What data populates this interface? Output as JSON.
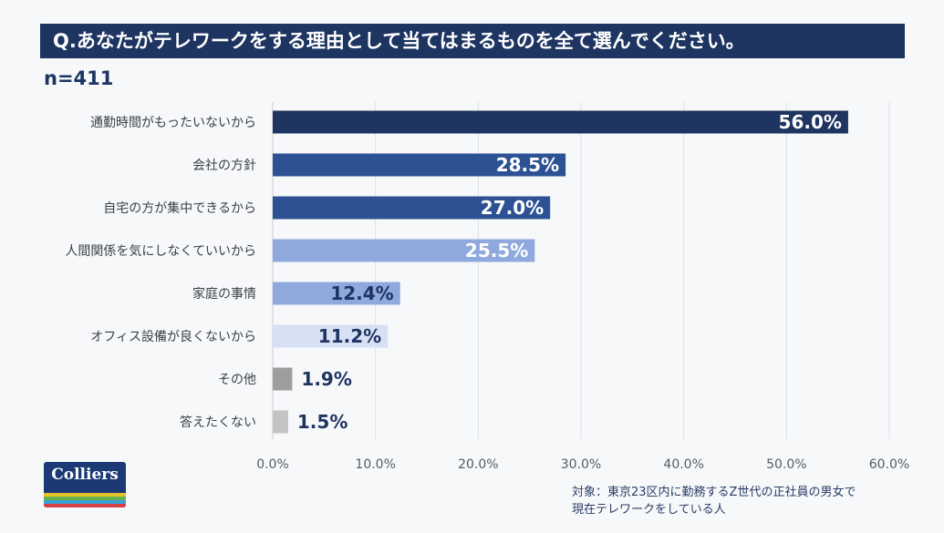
{
  "title": "Q.あなたがテレワークをする理由として当てはまるものを全て選んでください。",
  "sample_size": "n=411",
  "footnote": {
    "line1": "対象：東京23区内に勤務するZ世代の正社員の男女で",
    "line2": "現在テレワークをしている人"
  },
  "logo": {
    "text": "Colliers",
    "stripe_colors": [
      "#e6c229",
      "#6ab04c",
      "#3aa0d8",
      "#d64045"
    ]
  },
  "chart_data": {
    "type": "bar",
    "orientation": "horizontal",
    "categories": [
      "通勤時間がもったいないから",
      "会社の方針",
      "自宅の方が集中できるから",
      "人間関係を気にしなくていいから",
      "家庭の事情",
      "オフィス設備が良くないから",
      "その他",
      "答えたくない"
    ],
    "values": [
      56.0,
      28.5,
      27.0,
      25.5,
      12.4,
      11.2,
      1.9,
      1.5
    ],
    "data_labels": [
      "56.0%",
      "28.5%",
      "27.0%",
      "25.5%",
      "12.4%",
      "11.2%",
      "1.9%",
      "1.5%"
    ],
    "bar_colors": [
      "#1e3461",
      "#2d5294",
      "#2d5294",
      "#8fa9dc",
      "#8fa9dc",
      "#d8e1f4",
      "#9e9e9e",
      "#c4c4c4"
    ],
    "label_colors": [
      "#ffffff",
      "#ffffff",
      "#ffffff",
      "#ffffff",
      "#1e3461",
      "#1e3461",
      "#1e3461",
      "#1e3461"
    ],
    "xlim": [
      0,
      60
    ],
    "x_ticks": [
      "0.0%",
      "10.0%",
      "20.0%",
      "30.0%",
      "40.0%",
      "50.0%",
      "60.0%"
    ],
    "grid": true,
    "xlabel": "",
    "ylabel": ""
  }
}
